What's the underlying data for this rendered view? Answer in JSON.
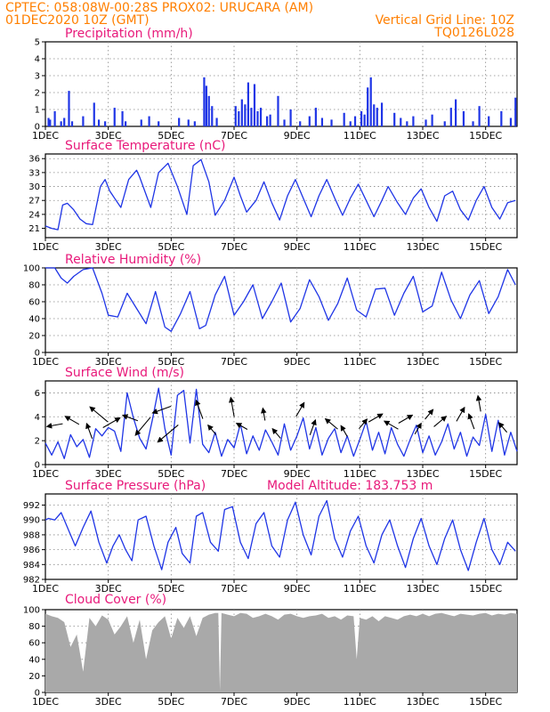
{
  "header": {
    "line1_left": "CPTEC:    058:08W-00:28S   PROX02: URUCARA (AM)",
    "line2_left": "01DEC2020 10Z (GMT)",
    "line2_right": "Vertical Grid Line: 10Z",
    "line3_right": "TQ0126L028"
  },
  "colors": {
    "header": "#ff7f00",
    "titles": "#e8197a",
    "series": "#1f35e6",
    "cloud": "#a9a9a9",
    "grid": "#888888"
  },
  "x_axis": {
    "label_pattern": [
      "1DEC",
      "3DEC",
      "5DEC",
      "7DEC",
      "9DEC",
      "11DEC",
      "13DEC",
      "15DEC"
    ],
    "label_days": [
      1,
      3,
      5,
      7,
      9,
      11,
      13,
      15
    ],
    "range_days": [
      1,
      16
    ]
  },
  "chart_data": [
    {
      "id": "precip",
      "type": "bar",
      "title": "Precipitation (mm/h)",
      "ylim": [
        0,
        5
      ],
      "yticks": [
        0,
        1,
        2,
        3,
        4,
        5
      ],
      "x": [
        1.1,
        1.15,
        1.3,
        1.5,
        1.6,
        1.75,
        1.85,
        2.2,
        2.55,
        2.7,
        2.9,
        3.2,
        3.45,
        3.55,
        4.05,
        4.3,
        4.6,
        5.25,
        5.55,
        5.75,
        6.05,
        6.12,
        6.2,
        6.3,
        6.45,
        7.05,
        7.15,
        7.25,
        7.35,
        7.45,
        7.55,
        7.65,
        7.75,
        7.85,
        8.05,
        8.15,
        8.4,
        8.6,
        8.8,
        9.1,
        9.4,
        9.6,
        9.8,
        10.1,
        10.5,
        10.7,
        10.85,
        11.05,
        11.15,
        11.25,
        11.35,
        11.45,
        11.55,
        11.7,
        12.1,
        12.3,
        12.5,
        12.7,
        13.1,
        13.3,
        13.7,
        13.9,
        14.05,
        14.3,
        14.6,
        14.8,
        15.1,
        15.5,
        15.8,
        15.95
      ],
      "values": [
        0.5,
        0.4,
        0.9,
        0.3,
        0.5,
        2.1,
        0.3,
        0.6,
        1.4,
        0.4,
        0.3,
        1.1,
        0.9,
        0.3,
        0.4,
        0.6,
        0.3,
        0.5,
        0.4,
        0.3,
        2.9,
        2.4,
        1.8,
        1.2,
        0.5,
        1.2,
        0.9,
        1.6,
        1.3,
        2.6,
        1.1,
        2.5,
        0.9,
        1.1,
        0.6,
        0.7,
        1.8,
        0.4,
        1.0,
        0.3,
        0.6,
        1.1,
        0.5,
        0.4,
        0.8,
        0.3,
        0.6,
        0.9,
        0.7,
        2.3,
        2.9,
        1.3,
        1.1,
        1.4,
        0.8,
        0.5,
        0.3,
        0.6,
        0.4,
        0.7,
        0.3,
        1.1,
        1.6,
        0.9,
        0.3,
        1.2,
        0.6,
        0.9,
        0.5,
        1.7
      ]
    },
    {
      "id": "temp",
      "type": "line",
      "title": "Surface Temperature (nC)",
      "ylim": [
        19,
        37
      ],
      "yticks": [
        21,
        24,
        27,
        30,
        33,
        36
      ],
      "x": [
        1.0,
        1.2,
        1.4,
        1.55,
        1.7,
        1.9,
        2.1,
        2.3,
        2.5,
        2.75,
        2.9,
        3.05,
        3.4,
        3.65,
        3.9,
        4.0,
        4.35,
        4.6,
        4.9,
        5.2,
        5.5,
        5.7,
        5.95,
        6.2,
        6.4,
        6.7,
        7.0,
        7.2,
        7.4,
        7.7,
        7.95,
        8.2,
        8.45,
        8.7,
        8.95,
        9.2,
        9.45,
        9.7,
        9.95,
        10.2,
        10.45,
        10.7,
        10.95,
        11.2,
        11.45,
        11.7,
        11.9,
        12.2,
        12.45,
        12.7,
        12.95,
        13.2,
        13.45,
        13.7,
        13.95,
        14.2,
        14.45,
        14.7,
        14.95,
        15.2,
        15.45,
        15.7,
        15.95
      ],
      "values": [
        21.5,
        21.0,
        20.7,
        26.0,
        26.4,
        25.0,
        23.0,
        22.0,
        21.8,
        30.0,
        31.5,
        29.0,
        25.5,
        31.5,
        33.5,
        32.0,
        25.5,
        33.0,
        35.0,
        30.0,
        24.0,
        34.5,
        35.8,
        31.0,
        23.8,
        27.0,
        32.0,
        28.0,
        24.5,
        27.0,
        31.0,
        26.5,
        22.8,
        28.0,
        31.5,
        27.5,
        23.5,
        28.0,
        31.5,
        27.5,
        23.8,
        27.5,
        30.5,
        27.0,
        23.5,
        27.0,
        30.0,
        26.5,
        24.0,
        27.5,
        29.5,
        25.5,
        22.5,
        28.0,
        29.0,
        25.0,
        22.8,
        27.0,
        30.0,
        25.5,
        23.0,
        26.5,
        27.0
      ]
    },
    {
      "id": "rh",
      "type": "line",
      "title": "Relative Humidity (%)",
      "ylim": [
        0,
        100
      ],
      "yticks": [
        0,
        20,
        40,
        60,
        80,
        100
      ],
      "x": [
        1.0,
        1.3,
        1.5,
        1.7,
        1.9,
        2.2,
        2.5,
        2.8,
        3.0,
        3.3,
        3.6,
        3.9,
        4.2,
        4.5,
        4.8,
        5.0,
        5.3,
        5.6,
        5.9,
        6.1,
        6.4,
        6.7,
        7.0,
        7.3,
        7.6,
        7.9,
        8.2,
        8.5,
        8.8,
        9.1,
        9.4,
        9.7,
        10.0,
        10.3,
        10.6,
        10.9,
        11.2,
        11.5,
        11.8,
        12.1,
        12.4,
        12.7,
        13.0,
        13.3,
        13.6,
        13.9,
        14.2,
        14.5,
        14.8,
        15.1,
        15.4,
        15.7,
        15.95
      ],
      "values": [
        100,
        100,
        88,
        82,
        90,
        98,
        100,
        70,
        44,
        42,
        70,
        52,
        34,
        72,
        30,
        25,
        46,
        72,
        28,
        32,
        68,
        90,
        44,
        60,
        80,
        40,
        60,
        82,
        36,
        52,
        86,
        66,
        38,
        58,
        88,
        50,
        42,
        75,
        76,
        44,
        70,
        90,
        48,
        55,
        95,
        62,
        40,
        68,
        85,
        46,
        66,
        98,
        80
      ]
    },
    {
      "id": "wind",
      "type": "line",
      "title": "Surface Wind (m/s)",
      "ylim": [
        0,
        7
      ],
      "yticks": [
        0,
        2,
        4,
        6
      ],
      "x": [
        1.0,
        1.2,
        1.4,
        1.6,
        1.8,
        2.0,
        2.2,
        2.4,
        2.6,
        2.8,
        3.0,
        3.2,
        3.4,
        3.6,
        3.8,
        4.0,
        4.2,
        4.4,
        4.6,
        4.8,
        5.0,
        5.2,
        5.4,
        5.6,
        5.8,
        6.0,
        6.2,
        6.4,
        6.6,
        6.8,
        7.0,
        7.2,
        7.4,
        7.6,
        7.8,
        8.0,
        8.2,
        8.4,
        8.6,
        8.8,
        9.0,
        9.2,
        9.4,
        9.6,
        9.8,
        10.0,
        10.2,
        10.4,
        10.6,
        10.8,
        11.0,
        11.2,
        11.4,
        11.6,
        11.8,
        12.0,
        12.2,
        12.4,
        12.6,
        12.8,
        13.0,
        13.2,
        13.4,
        13.6,
        13.8,
        14.0,
        14.2,
        14.4,
        14.6,
        14.8,
        15.0,
        15.2,
        15.4,
        15.6,
        15.8,
        16.0
      ],
      "values": [
        1.8,
        0.8,
        1.9,
        0.5,
        2.5,
        1.5,
        2.1,
        0.6,
        3.0,
        2.4,
        3.1,
        2.8,
        1.1,
        6.0,
        3.9,
        2.2,
        1.3,
        3.7,
        6.4,
        3.0,
        0.8,
        5.8,
        6.2,
        1.8,
        6.3,
        1.7,
        1.0,
        2.7,
        0.7,
        2.1,
        1.4,
        3.4,
        0.9,
        2.4,
        1.2,
        2.9,
        1.9,
        0.8,
        3.4,
        1.2,
        2.4,
        3.9,
        1.3,
        3.1,
        0.8,
        2.2,
        3.0,
        1.0,
        2.4,
        0.7,
        2.1,
        3.6,
        1.2,
        2.7,
        0.9,
        3.1,
        1.7,
        0.7,
        2.1,
        3.3,
        1.0,
        2.4,
        0.8,
        1.9,
        3.4,
        1.3,
        2.7,
        0.7,
        2.3,
        1.6,
        4.2,
        1.1,
        3.7,
        0.8,
        2.7,
        1.1
      ],
      "arrows": [
        {
          "x": 1.3,
          "y": 3.3,
          "dir": 260,
          "len": 3
        },
        {
          "x": 1.85,
          "y": 3.7,
          "dir": 300,
          "len": 3
        },
        {
          "x": 2.4,
          "y": 2.8,
          "dir": 340,
          "len": 3
        },
        {
          "x": 2.7,
          "y": 4.2,
          "dir": 310,
          "len": 5
        },
        {
          "x": 3.1,
          "y": 3.5,
          "dir": 60,
          "len": 4
        },
        {
          "x": 3.7,
          "y": 3.9,
          "dir": 290,
          "len": 3
        },
        {
          "x": 4.1,
          "y": 3.2,
          "dir": 220,
          "len": 5
        },
        {
          "x": 4.7,
          "y": 4.6,
          "dir": 250,
          "len": 4
        },
        {
          "x": 4.9,
          "y": 2.6,
          "dir": 230,
          "len": 6
        },
        {
          "x": 5.9,
          "y": 4.6,
          "dir": 340,
          "len": 4
        },
        {
          "x": 6.3,
          "y": 2.9,
          "dir": 320,
          "len": 2
        },
        {
          "x": 6.95,
          "y": 4.8,
          "dir": 350,
          "len": 4
        },
        {
          "x": 7.25,
          "y": 3.2,
          "dir": 300,
          "len": 2
        },
        {
          "x": 7.95,
          "y": 4.2,
          "dir": 350,
          "len": 2
        },
        {
          "x": 8.35,
          "y": 2.6,
          "dir": 320,
          "len": 2
        },
        {
          "x": 9.1,
          "y": 4.6,
          "dir": 30,
          "len": 3
        },
        {
          "x": 9.5,
          "y": 3.1,
          "dir": 20,
          "len": 3
        },
        {
          "x": 10.1,
          "y": 3.4,
          "dir": 310,
          "len": 3
        },
        {
          "x": 10.5,
          "y": 2.8,
          "dir": 330,
          "len": 2
        },
        {
          "x": 11.1,
          "y": 3.4,
          "dir": 40,
          "len": 2
        },
        {
          "x": 11.5,
          "y": 3.9,
          "dir": 60,
          "len": 3
        },
        {
          "x": 12.0,
          "y": 3.3,
          "dir": 300,
          "len": 3
        },
        {
          "x": 12.45,
          "y": 3.8,
          "dir": 60,
          "len": 3
        },
        {
          "x": 12.85,
          "y": 3.0,
          "dir": 30,
          "len": 2
        },
        {
          "x": 13.2,
          "y": 4.2,
          "dir": 40,
          "len": 2
        },
        {
          "x": 13.55,
          "y": 3.6,
          "dir": 50,
          "len": 3
        },
        {
          "x": 14.2,
          "y": 4.2,
          "dir": 30,
          "len": 3
        },
        {
          "x": 14.55,
          "y": 3.6,
          "dir": 340,
          "len": 3
        },
        {
          "x": 14.8,
          "y": 5.1,
          "dir": 350,
          "len": 3
        },
        {
          "x": 15.55,
          "y": 3.1,
          "dir": 320,
          "len": 2
        }
      ]
    },
    {
      "id": "pres",
      "type": "line",
      "title": "Surface Pressure (hPa)",
      "annotation": "Model Altitude: 183.753  m",
      "ylim": [
        982,
        993.5
      ],
      "yticks": [
        982,
        984,
        986,
        988,
        990,
        992
      ],
      "x": [
        1.0,
        1.1,
        1.3,
        1.5,
        1.75,
        1.95,
        2.2,
        2.45,
        2.7,
        2.95,
        3.15,
        3.35,
        3.55,
        3.75,
        3.95,
        4.2,
        4.45,
        4.7,
        4.9,
        5.15,
        5.35,
        5.6,
        5.8,
        6.0,
        6.25,
        6.5,
        6.7,
        6.95,
        7.2,
        7.45,
        7.7,
        7.95,
        8.2,
        8.45,
        8.7,
        8.95,
        9.2,
        9.45,
        9.7,
        9.95,
        10.2,
        10.45,
        10.7,
        10.95,
        11.2,
        11.45,
        11.7,
        11.95,
        12.2,
        12.45,
        12.7,
        12.95,
        13.2,
        13.45,
        13.7,
        13.95,
        14.2,
        14.45,
        14.7,
        14.95,
        15.2,
        15.45,
        15.7,
        15.95
      ],
      "values": [
        990.0,
        990.2,
        990.0,
        991.0,
        988.5,
        986.5,
        989.0,
        991.2,
        987.0,
        984.2,
        986.5,
        988.0,
        986.0,
        984.5,
        990.0,
        990.5,
        986.5,
        983.3,
        987.0,
        989.0,
        985.5,
        984.2,
        990.5,
        991.0,
        987.0,
        985.8,
        991.4,
        991.8,
        987.0,
        984.8,
        989.5,
        991.0,
        986.5,
        985.0,
        990.0,
        992.4,
        988.0,
        985.3,
        990.5,
        992.6,
        987.5,
        985.0,
        988.5,
        990.5,
        986.5,
        984.2,
        988.0,
        990.0,
        986.5,
        983.6,
        987.5,
        990.2,
        986.5,
        984.0,
        987.5,
        990.0,
        986.0,
        983.2,
        987.0,
        990.2,
        986.0,
        984.0,
        987.0,
        985.8
      ]
    },
    {
      "id": "cloud",
      "type": "area",
      "title": "Cloud Cover (%)",
      "ylim": [
        0,
        100
      ],
      "yticks": [
        0,
        20,
        40,
        60,
        80,
        100
      ],
      "x": [
        1.0,
        1.2,
        1.4,
        1.6,
        1.8,
        2.0,
        2.2,
        2.4,
        2.6,
        2.8,
        3.0,
        3.2,
        3.4,
        3.6,
        3.8,
        4.0,
        4.2,
        4.4,
        4.6,
        4.8,
        5.0,
        5.2,
        5.4,
        5.6,
        5.8,
        6.0,
        6.2,
        6.4,
        6.5,
        6.55,
        6.6,
        6.8,
        7.0,
        7.2,
        7.4,
        7.6,
        7.8,
        8.0,
        8.2,
        8.4,
        8.6,
        8.8,
        9.0,
        9.2,
        9.4,
        9.6,
        9.8,
        10.0,
        10.2,
        10.4,
        10.6,
        10.8,
        10.9,
        11.0,
        11.2,
        11.4,
        11.6,
        11.8,
        12.0,
        12.2,
        12.4,
        12.6,
        12.8,
        13.0,
        13.2,
        13.4,
        13.6,
        13.8,
        14.0,
        14.2,
        14.4,
        14.6,
        14.8,
        15.0,
        15.2,
        15.4,
        15.6,
        15.8,
        16.0
      ],
      "values": [
        95,
        92,
        90,
        85,
        55,
        70,
        25,
        90,
        80,
        93,
        88,
        70,
        80,
        92,
        60,
        88,
        40,
        75,
        85,
        92,
        65,
        90,
        78,
        92,
        68,
        90,
        94,
        96,
        96,
        2,
        96,
        94,
        92,
        96,
        95,
        90,
        92,
        95,
        92,
        88,
        94,
        95,
        92,
        90,
        92,
        93,
        95,
        90,
        92,
        88,
        93,
        92,
        40,
        90,
        88,
        92,
        86,
        92,
        90,
        88,
        92,
        94,
        92,
        95,
        92,
        95,
        96,
        94,
        92,
        95,
        94,
        93,
        95,
        96,
        93,
        95,
        94,
        96,
        95
      ]
    }
  ]
}
